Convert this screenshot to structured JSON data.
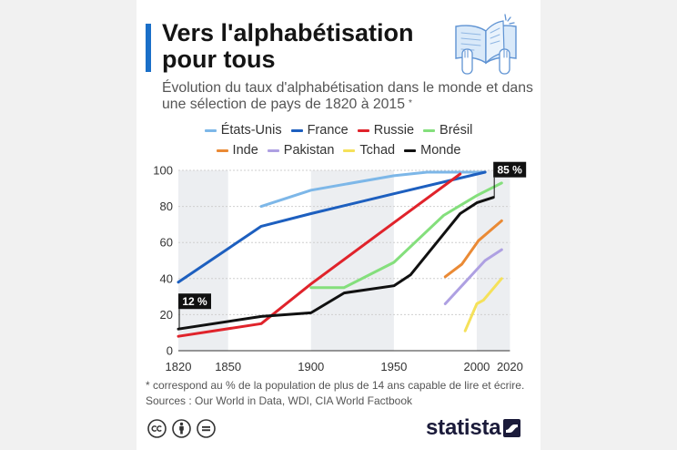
{
  "header": {
    "title_line1": "Vers l'alphabétisation",
    "title_line2": "pour tous",
    "subtitle_line1": "Évolution du taux d'alphabétisation dans le monde et dans",
    "subtitle_line2": "une sélection de pays de 1820 à 2015",
    "subtitle_note_mark": "*",
    "accent_color": "#1a6fc8",
    "icon": "open-book-hands-icon"
  },
  "chart_data": {
    "type": "line",
    "xlim": [
      1820,
      2020
    ],
    "ylim": [
      0,
      100
    ],
    "x_ticks": [
      1820,
      1850,
      1900,
      1950,
      2000,
      2020
    ],
    "y_ticks": [
      0,
      20,
      40,
      60,
      80,
      100
    ],
    "grid": true,
    "legend_position": "top",
    "shaded_bands": [
      [
        1820,
        1850
      ],
      [
        1900,
        1950
      ],
      [
        2000,
        2020
      ]
    ],
    "series": [
      {
        "name": "États-Unis",
        "color": "#7db7e8",
        "points": [
          [
            1870,
            80
          ],
          [
            1900,
            89
          ],
          [
            1950,
            97
          ],
          [
            1970,
            99
          ],
          [
            2005,
            99
          ]
        ]
      },
      {
        "name": "France",
        "color": "#1d5fbf",
        "points": [
          [
            1820,
            38
          ],
          [
            1870,
            69
          ],
          [
            1900,
            76
          ],
          [
            1950,
            87
          ],
          [
            2005,
            99
          ]
        ]
      },
      {
        "name": "Russie",
        "color": "#e0232b",
        "points": [
          [
            1820,
            8
          ],
          [
            1870,
            15
          ],
          [
            1900,
            37
          ],
          [
            1950,
            71
          ],
          [
            1990,
            98
          ]
        ]
      },
      {
        "name": "Brésil",
        "color": "#84df7c",
        "points": [
          [
            1900,
            35
          ],
          [
            1920,
            35
          ],
          [
            1950,
            49
          ],
          [
            1980,
            75
          ],
          [
            2000,
            86
          ],
          [
            2015,
            93
          ]
        ]
      },
      {
        "name": "Inde",
        "color": "#ea8a35",
        "points": [
          [
            1981,
            41
          ],
          [
            1991,
            48
          ],
          [
            2001,
            61
          ],
          [
            2015,
            72
          ]
        ]
      },
      {
        "name": "Pakistan",
        "color": "#aea0e2",
        "points": [
          [
            1981,
            26
          ],
          [
            1998,
            43
          ],
          [
            2005,
            50
          ],
          [
            2015,
            56
          ]
        ]
      },
      {
        "name": "Tchad",
        "color": "#f5e15a",
        "points": [
          [
            1993,
            11
          ],
          [
            2000,
            26
          ],
          [
            2004,
            28
          ],
          [
            2015,
            40
          ]
        ]
      },
      {
        "name": "Monde",
        "color": "#111111",
        "points": [
          [
            1820,
            12
          ],
          [
            1870,
            19
          ],
          [
            1900,
            21
          ],
          [
            1920,
            32
          ],
          [
            1950,
            36
          ],
          [
            1960,
            42
          ],
          [
            1990,
            76
          ],
          [
            2000,
            82
          ],
          [
            2010,
            85
          ]
        ]
      }
    ],
    "annotations": [
      {
        "text": "12 %",
        "x": 1820,
        "y": 12
      },
      {
        "text": "85 %",
        "x": 2010,
        "y": 85
      }
    ]
  },
  "footer": {
    "note": "* correspond au % de la population de plus de 14 ans capable de lire et écrire.",
    "sources": "Sources : Our World in Data, WDI, CIA World Factbook",
    "license_icons": [
      "creative-commons-icon",
      "attribution-icon",
      "no-derivatives-icon"
    ],
    "brand": "statista",
    "brand_color": "#1b1b3a"
  }
}
